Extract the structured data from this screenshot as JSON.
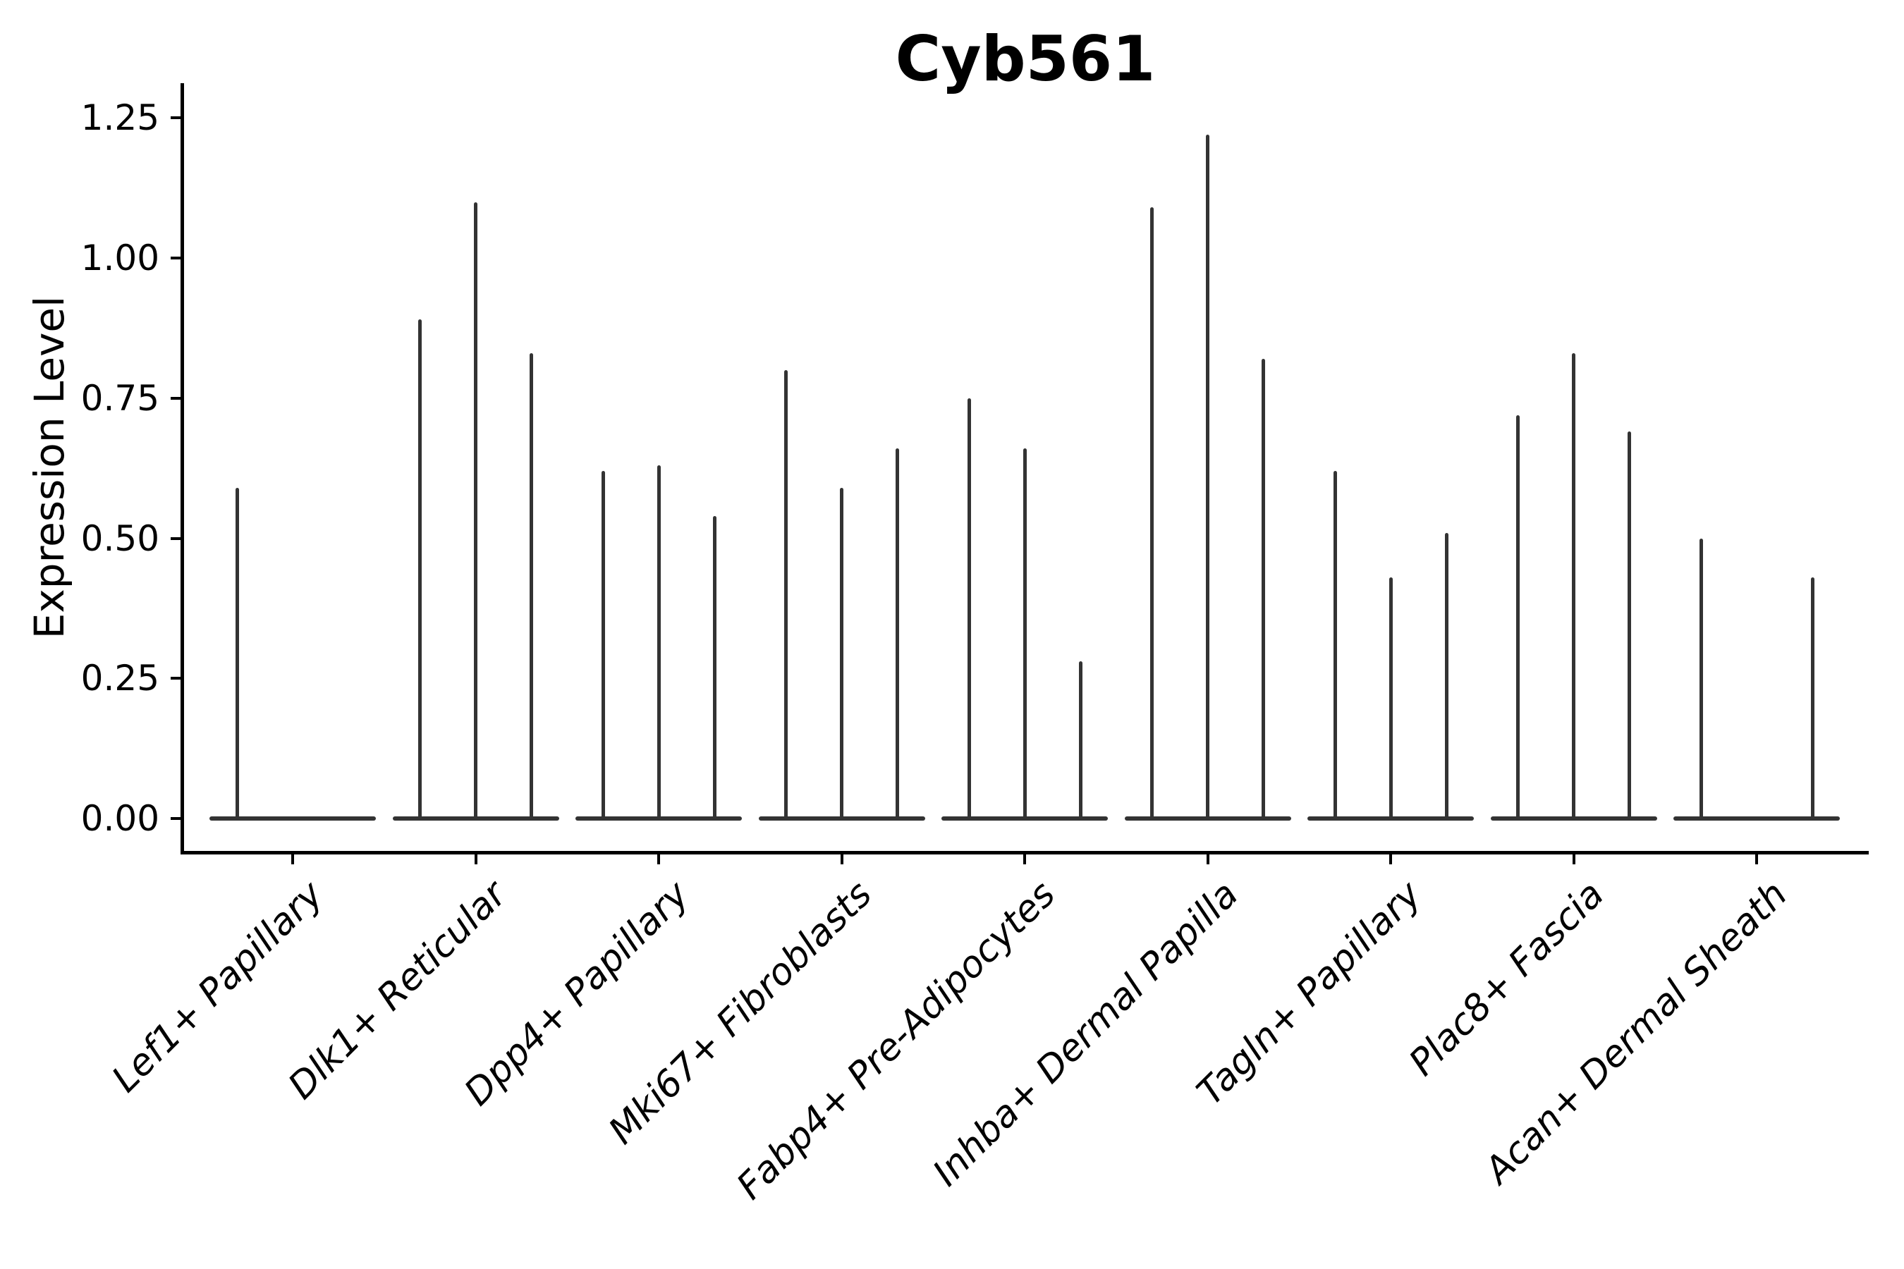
{
  "chart_data": {
    "type": "violin",
    "title": "Cyb561",
    "xlabel": "",
    "ylabel": "Expression Level",
    "legend_position": "none",
    "grid": false,
    "background_color": "#ffffff",
    "axis_color": "#000000",
    "text_color": "#000000",
    "violin_color": "#333333",
    "ylim": [
      -0.06,
      1.31
    ],
    "yticks": {
      "values": [
        0,
        0.25,
        0.5,
        0.75,
        1.0,
        1.25
      ],
      "labels": [
        "0.00",
        "0.25",
        "0.50",
        "0.75",
        "1.00",
        "1.25"
      ]
    },
    "violins_per_group": 3,
    "baseline_value": 0,
    "categories": [
      "Lef1+ Papillary",
      "Dlk1+ Reticular",
      "Dpp4+ Papillary",
      "Mki67+ Fibroblasts",
      "Fabp4+ Pre-Adipocytes",
      "Inhba+ Dermal Papilla",
      "Tagln+ Papillary",
      "Plac8+ Fascia",
      "Acan+ Dermal Sheath"
    ],
    "groups": [
      {
        "category": "Lef1+ Papillary",
        "max_values": [
          0.59,
          null,
          null
        ]
      },
      {
        "category": "Dlk1+ Reticular",
        "max_values": [
          0.89,
          1.1,
          0.83
        ]
      },
      {
        "category": "Dpp4+ Papillary",
        "max_values": [
          0.62,
          0.63,
          0.54
        ]
      },
      {
        "category": "Mki67+ Fibroblasts",
        "max_values": [
          0.8,
          0.59,
          0.66
        ]
      },
      {
        "category": "Fabp4+ Pre-Adipocytes",
        "max_values": [
          0.75,
          0.66,
          0.28
        ]
      },
      {
        "category": "Inhba+ Dermal Papilla",
        "max_values": [
          1.09,
          1.22,
          0.82
        ]
      },
      {
        "category": "Tagln+ Papillary",
        "max_values": [
          0.62,
          0.43,
          0.51
        ]
      },
      {
        "category": "Plac8+ Fascia",
        "max_values": [
          0.72,
          0.83,
          0.69
        ]
      },
      {
        "category": "Acan+ Dermal Sheath",
        "max_values": [
          0.5,
          null,
          0.43
        ]
      }
    ]
  }
}
